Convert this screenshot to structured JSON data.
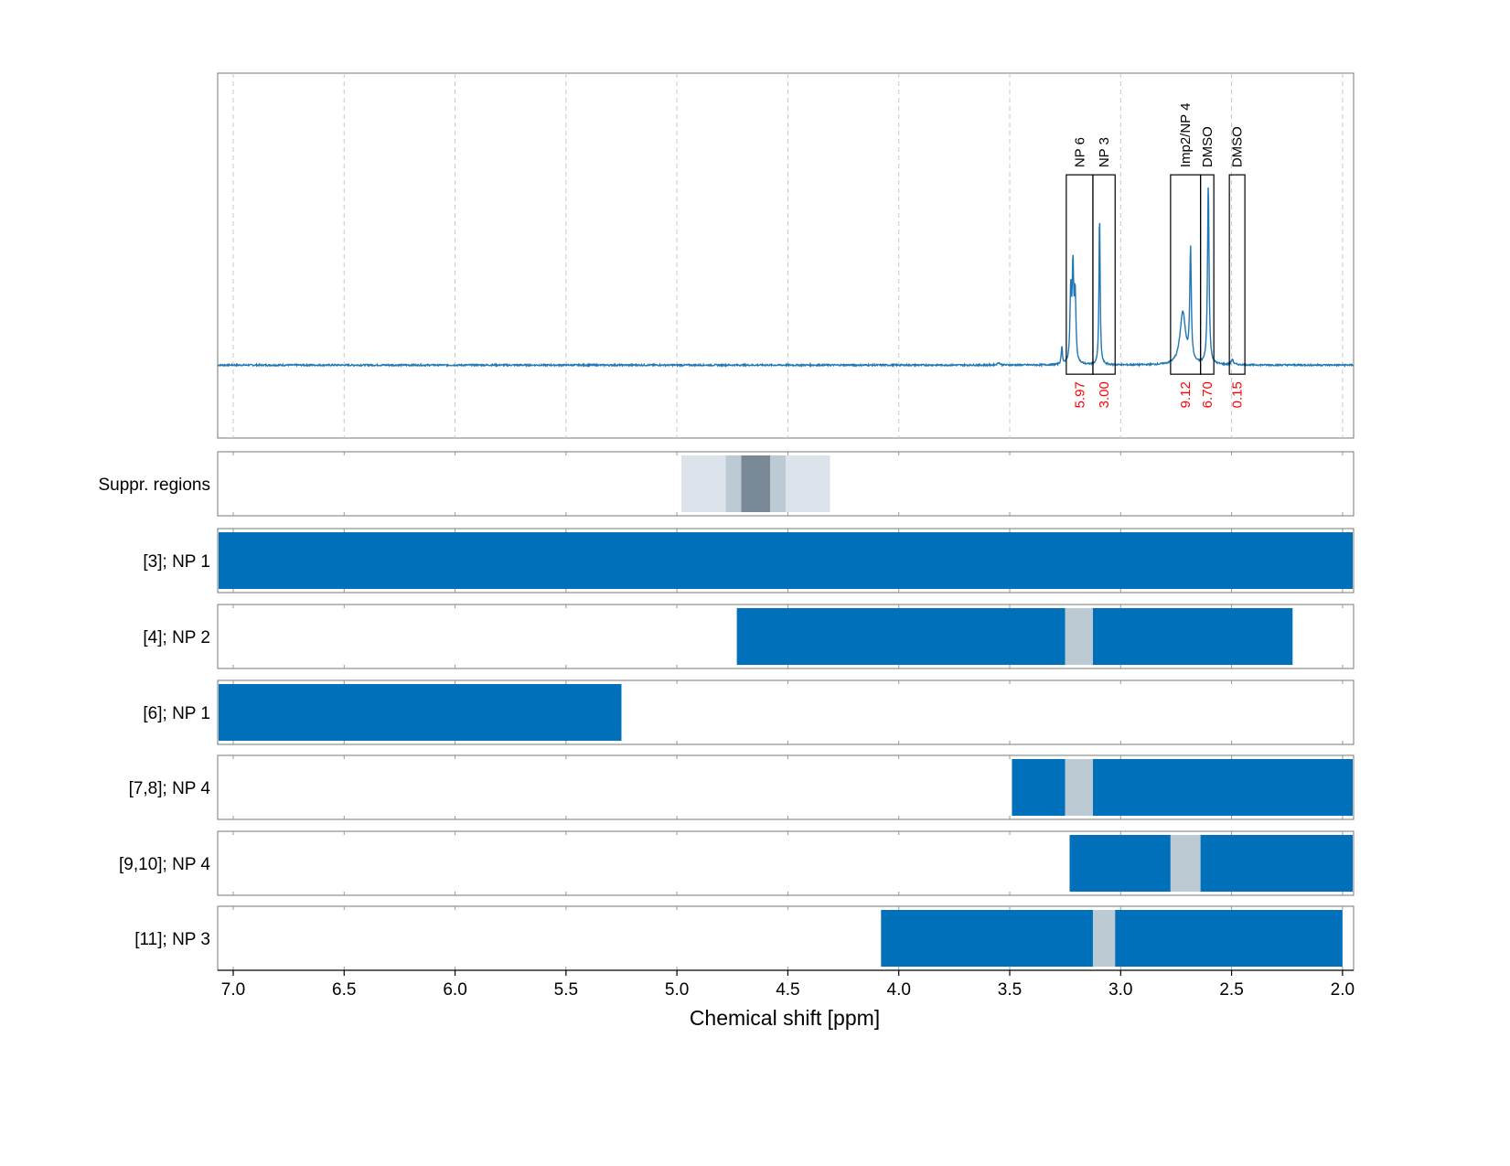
{
  "chart_data": {
    "type": "line",
    "xlabel": "Chemical shift [ppm]",
    "ylabel": "",
    "xlim": [
      7.07,
      1.95
    ],
    "x_reversed": true,
    "x_ticks": [
      7.0,
      6.5,
      6.0,
      5.5,
      5.0,
      4.5,
      4.0,
      3.5,
      3.0,
      2.5,
      2.0
    ],
    "x_tick_labels": [
      "7.0",
      "6.5",
      "6.0",
      "5.5",
      "5.0",
      "4.5",
      "4.0",
      "3.5",
      "3.0",
      "2.5",
      "2.0"
    ],
    "grid_x": true,
    "spectrum": {
      "baseline": 0,
      "ylim": [
        -0.28,
        1.12
      ],
      "peaks": [
        {
          "shift": 3.265,
          "height": 0.07,
          "width": 0.003
        },
        {
          "shift": 3.225,
          "height": 0.27,
          "width": 0.004
        },
        {
          "shift": 3.215,
          "height": 0.36,
          "width": 0.004
        },
        {
          "shift": 3.205,
          "height": 0.26,
          "width": 0.004
        },
        {
          "shift": 3.095,
          "height": 0.59,
          "width": 0.003
        },
        {
          "shift": 3.55,
          "height": 0.01,
          "width": 0.006
        },
        {
          "shift": 2.72,
          "height": 0.2,
          "width": 0.015
        },
        {
          "shift": 2.685,
          "height": 0.43,
          "width": 0.004
        },
        {
          "shift": 2.605,
          "height": 0.7,
          "width": 0.004
        },
        {
          "shift": 2.497,
          "height": 0.02,
          "width": 0.006
        }
      ]
    },
    "integration_regions": [
      {
        "label": "NP 6",
        "from": 3.245,
        "to": 3.125,
        "value": "5.97"
      },
      {
        "label": "NP 3",
        "from": 3.125,
        "to": 3.025,
        "value": "3.00"
      },
      {
        "label": "Imp2/NP 4",
        "from": 2.775,
        "to": 2.64,
        "value": "9.12"
      },
      {
        "label": "DMSO",
        "from": 2.64,
        "to": 2.58,
        "value": "6.70"
      },
      {
        "label": "DMSO",
        "from": 2.51,
        "to": 2.44,
        "value": "0.15"
      }
    ],
    "rows": [
      {
        "label": "Suppr. regions",
        "segments": [
          {
            "from": 4.98,
            "to": 4.31,
            "color": "#dce3ea"
          },
          {
            "from": 4.78,
            "to": 4.51,
            "color": "#bccbd3"
          },
          {
            "from": 4.71,
            "to": 4.58,
            "color": "#798a96"
          }
        ]
      },
      {
        "label": "[3]; NP 1",
        "segments": [
          {
            "from": 7.07,
            "to": 1.95,
            "color": "#0070bb"
          }
        ]
      },
      {
        "label": "[4]; NP 2",
        "segments": [
          {
            "from": 4.73,
            "to": 3.25,
            "color": "#0070bb"
          },
          {
            "from": 3.25,
            "to": 3.125,
            "color": "#bccbd3"
          },
          {
            "from": 3.125,
            "to": 2.225,
            "color": "#0070bb"
          }
        ]
      },
      {
        "label": "[6]; NP 1",
        "segments": [
          {
            "from": 7.07,
            "to": 5.25,
            "color": "#0070bb"
          }
        ]
      },
      {
        "label": "[7,8]; NP 4",
        "segments": [
          {
            "from": 3.49,
            "to": 3.25,
            "color": "#0070bb"
          },
          {
            "from": 3.25,
            "to": 3.125,
            "color": "#bccbd3"
          },
          {
            "from": 3.125,
            "to": 1.95,
            "color": "#0070bb"
          }
        ]
      },
      {
        "label": "[9,10]; NP 4",
        "segments": [
          {
            "from": 3.23,
            "to": 2.775,
            "color": "#0070bb"
          },
          {
            "from": 2.775,
            "to": 2.64,
            "color": "#bccbd3"
          },
          {
            "from": 2.64,
            "to": 1.95,
            "color": "#0070bb"
          }
        ]
      },
      {
        "label": "[11]; NP 3",
        "segments": [
          {
            "from": 4.08,
            "to": 3.125,
            "color": "#0070bb"
          },
          {
            "from": 3.125,
            "to": 3.025,
            "color": "#bccbd3"
          },
          {
            "from": 3.025,
            "to": 2.0,
            "color": "#0070bb"
          }
        ]
      }
    ],
    "colors": {
      "spectrum": "#1f77b4",
      "grid": "#c8c8c8",
      "frame": "#777777",
      "integral_text": "#ff0000"
    }
  }
}
